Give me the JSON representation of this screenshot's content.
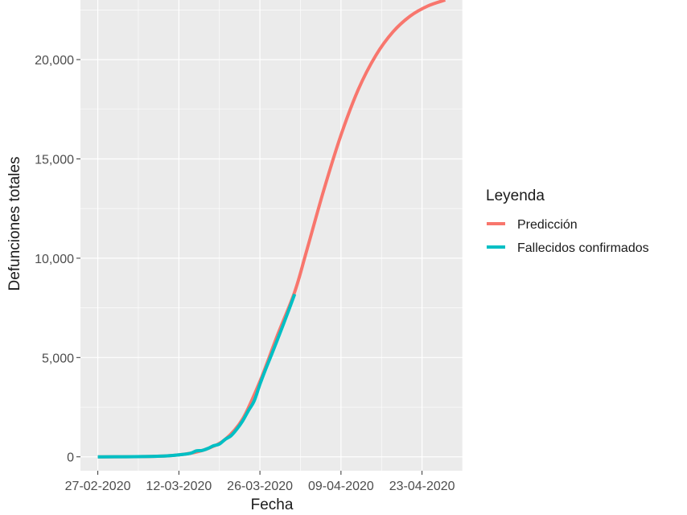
{
  "chart_data": {
    "type": "line",
    "title": "",
    "xlabel": "Fecha",
    "ylabel": "Defunciones totales",
    "x_tick_labels": [
      "27-02-2020",
      "12-03-2020",
      "26-03-2020",
      "09-04-2020",
      "23-04-2020"
    ],
    "y_tick_labels": [
      "0",
      "5,000",
      "10,000",
      "15,000",
      "20,000"
    ],
    "xlim": [
      "2020-02-24",
      "2020-04-30"
    ],
    "ylim": [
      -700,
      23000
    ],
    "grid": true,
    "legend": {
      "title": "Leyenda",
      "position": "right"
    },
    "series": [
      {
        "name": "Predicción",
        "color": "#F8766D",
        "x": [
          "2020-02-27",
          "2020-03-05",
          "2020-03-10",
          "2020-03-14",
          "2020-03-17",
          "2020-03-20",
          "2020-03-23",
          "2020-03-26",
          "2020-03-29",
          "2020-04-01",
          "2020-04-03",
          "2020-04-06",
          "2020-04-09",
          "2020-04-12",
          "2020-04-15",
          "2020-04-18",
          "2020-04-21",
          "2020-04-24",
          "2020-04-27"
        ],
        "y": [
          0,
          10,
          50,
          180,
          420,
          880,
          1900,
          3800,
          6100,
          8300,
          10300,
          13400,
          16200,
          18500,
          20200,
          21400,
          22200,
          22700,
          23000
        ]
      },
      {
        "name": "Fallecidos confirmados",
        "color": "#00BFC4",
        "x": [
          "2020-02-27",
          "2020-03-03",
          "2020-03-07",
          "2020-03-10",
          "2020-03-12",
          "2020-03-14",
          "2020-03-15",
          "2020-03-16",
          "2020-03-17",
          "2020-03-18",
          "2020-03-19",
          "2020-03-20",
          "2020-03-21",
          "2020-03-22",
          "2020-03-23",
          "2020-03-24",
          "2020-03-25",
          "2020-03-26",
          "2020-03-27",
          "2020-03-28",
          "2020-03-29",
          "2020-03-30",
          "2020-03-31",
          "2020-04-01"
        ],
        "y": [
          0,
          5,
          20,
          50,
          100,
          180,
          300,
          320,
          420,
          560,
          640,
          880,
          1060,
          1390,
          1800,
          2320,
          2810,
          3650,
          4420,
          5140,
          5880,
          6630,
          7400,
          8190
        ]
      }
    ]
  }
}
